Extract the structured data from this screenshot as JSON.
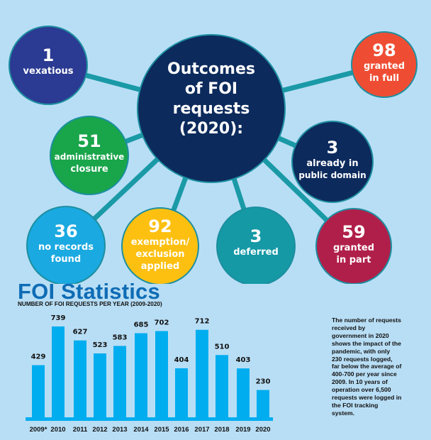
{
  "outcomes": {
    "center_title": [
      "Outcomes",
      "of FOI",
      "requests",
      "(2020):"
    ],
    "items": [
      {
        "value": "1",
        "label": [
          "vexatious"
        ],
        "color": "#2b3a92"
      },
      {
        "value": "98",
        "label": [
          "granted",
          "in full"
        ],
        "color": "#ef4d33"
      },
      {
        "value": "51",
        "label": [
          "administrative",
          "closure"
        ],
        "color": "#19a54a"
      },
      {
        "value": "3",
        "label": [
          "already in",
          "public domain"
        ],
        "color": "#0c2a5c"
      },
      {
        "value": "36",
        "label": [
          "no records",
          "found"
        ],
        "color": "#1aa9e1"
      },
      {
        "value": "92",
        "label": [
          "exemption/",
          "exclusion",
          "applied"
        ],
        "color": "#fdc011"
      },
      {
        "value": "3",
        "label": [
          "deferred"
        ],
        "color": "#1499a5"
      },
      {
        "value": "59",
        "label": [
          "granted",
          "in part"
        ],
        "color": "#b01f4a"
      }
    ],
    "center_color": "#0c2a5c",
    "connector_color": "#1a9aa6"
  },
  "stats": {
    "title": "FOI Statistics",
    "subtitle": "NUMBER OF FOI REQUESTS PER YEAR (2009-2020)",
    "note": "The number of requests\nreceived by\ngovernment in 2020\nshows the impact of the\npandemic, with only\n230 requests logged,\nfar below the average of\n400-700 per year since\n2009. In 10 years of\noperation over 6,500\nrequests were logged in\nthe FOI tracking\nsystem."
  },
  "chart_data": {
    "type": "bar",
    "title": "FOI Statistics",
    "subtitle": "NUMBER OF FOI REQUESTS PER YEAR (2009-2020)",
    "categories": [
      "2009*",
      "2010",
      "2011",
      "2012",
      "2013",
      "2014",
      "2015",
      "2016",
      "2017",
      "2018",
      "2019",
      "2020"
    ],
    "values": [
      429,
      739,
      627,
      523,
      583,
      685,
      702,
      404,
      712,
      510,
      403,
      230
    ],
    "data_labels": [
      "429",
      "739",
      "627",
      "523",
      "583",
      "685",
      "702",
      "404",
      "712",
      "510",
      "403",
      "230"
    ],
    "bar_color": "#00adef",
    "grid": false,
    "ylim": [
      0,
      800
    ]
  }
}
